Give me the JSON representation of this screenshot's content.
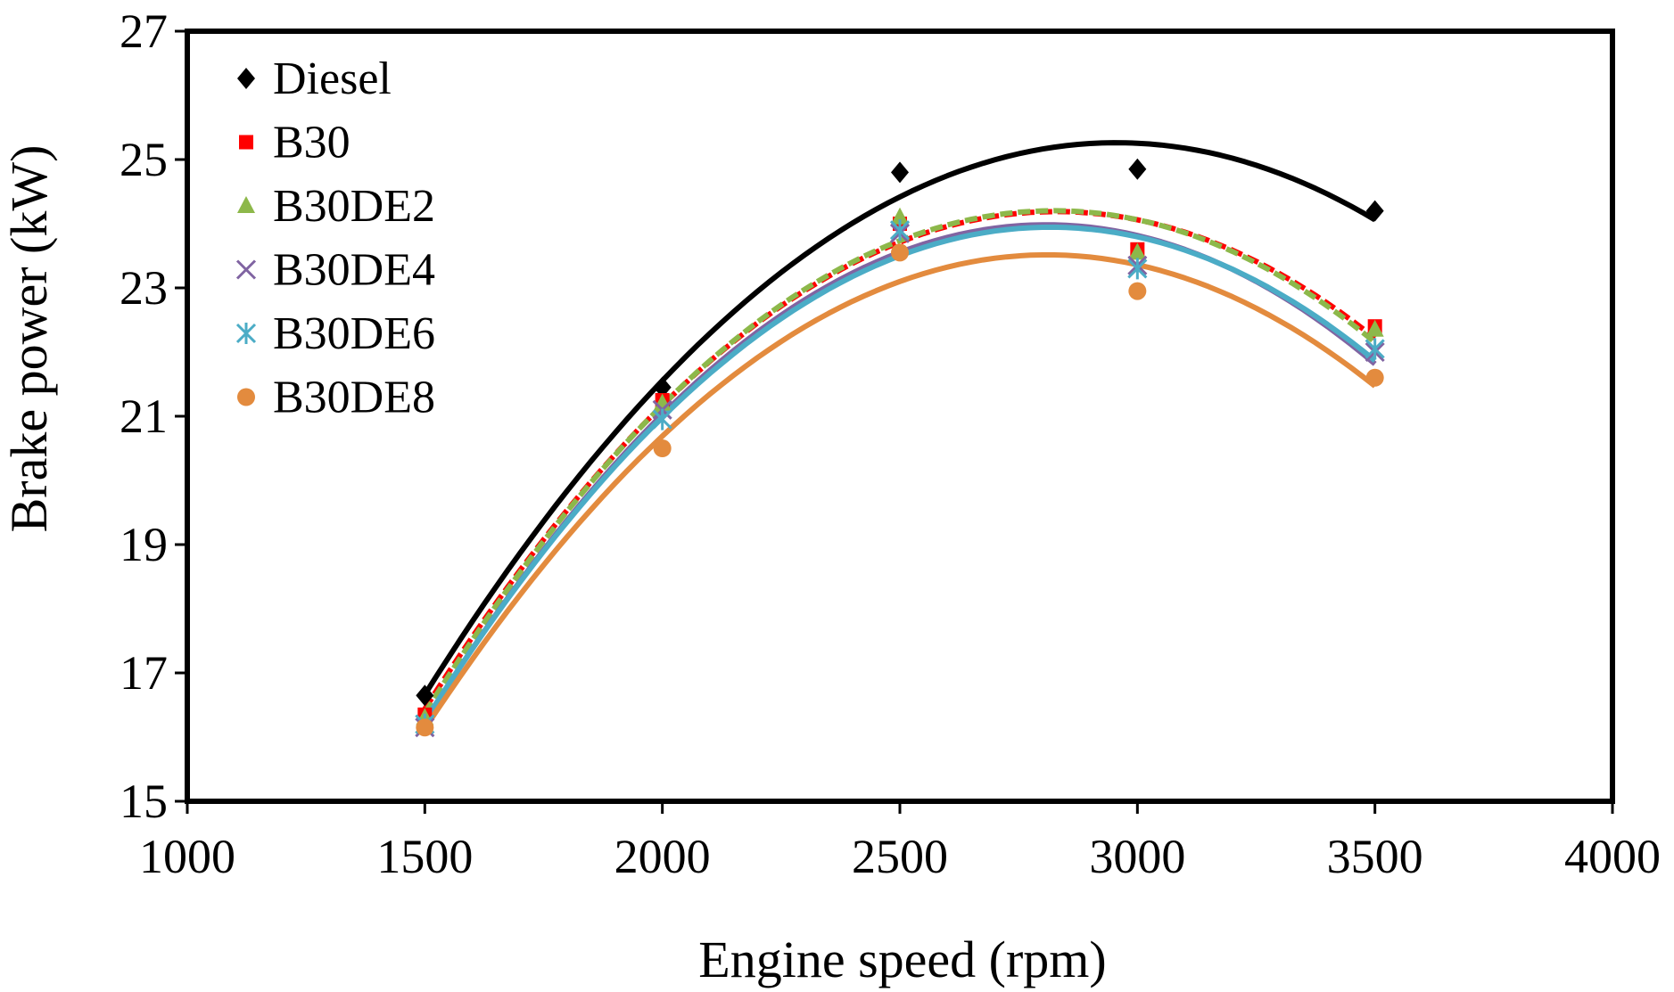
{
  "chart_data": {
    "type": "scatter",
    "title": "",
    "xlabel": "Engine speed (rpm)",
    "ylabel": "Brake power (kW)",
    "xlim": [
      1000,
      4000
    ],
    "ylim": [
      15,
      27
    ],
    "xticks": [
      1000,
      1500,
      2000,
      2500,
      3000,
      3500,
      4000
    ],
    "yticks": [
      15,
      17,
      19,
      21,
      23,
      25,
      27
    ],
    "grid": false,
    "legend_position": "top-left",
    "x": [
      1500,
      2000,
      2500,
      3000,
      3500
    ],
    "series": [
      {
        "name": "Diesel",
        "marker": "diamond",
        "color": "#000000",
        "trend_style": "solid",
        "values": [
          16.65,
          21.45,
          24.8,
          24.85,
          24.2
        ]
      },
      {
        "name": "B30",
        "marker": "square",
        "color": "#ff0000",
        "trend_style": "dashed",
        "values": [
          16.35,
          21.25,
          24.0,
          23.6,
          22.4
        ]
      },
      {
        "name": "B30DE2",
        "marker": "triangle",
        "color": "#8db84a",
        "trend_style": "dashed",
        "values": [
          16.3,
          21.2,
          24.1,
          23.55,
          22.35
        ]
      },
      {
        "name": "B30DE4",
        "marker": "x",
        "color": "#8064a2",
        "trend_style": "solid",
        "values": [
          16.15,
          21.1,
          23.85,
          23.35,
          22.0
        ]
      },
      {
        "name": "B30DE6",
        "marker": "asterisk",
        "color": "#4bacc6",
        "trend_style": "solid",
        "values": [
          16.2,
          20.95,
          23.9,
          23.3,
          22.05
        ]
      },
      {
        "name": "B30DE8",
        "marker": "circle",
        "color": "#e38b3e",
        "trend_style": "solid",
        "values": [
          16.15,
          20.5,
          23.55,
          22.95,
          21.6
        ]
      }
    ]
  }
}
